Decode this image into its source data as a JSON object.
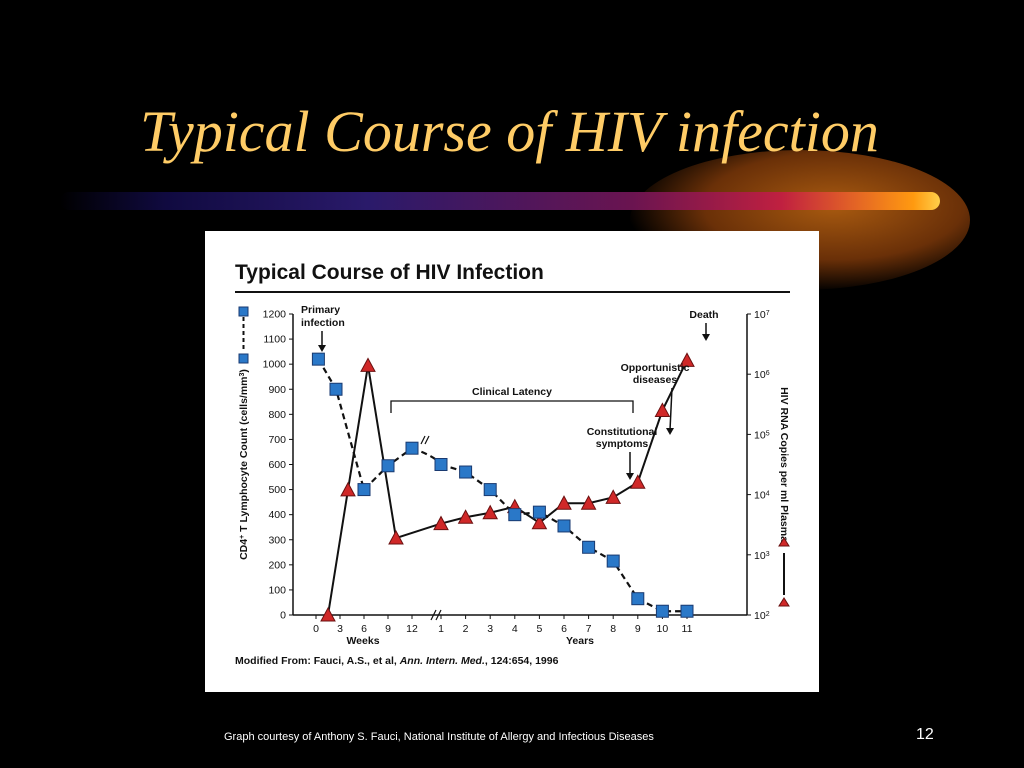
{
  "slide": {
    "title": "Typical Course of HIV infection",
    "footer": "Graph courtesy of Anthony S. Fauci, National Institute of Allergy and Infectious Diseases",
    "page_number": "12"
  },
  "colors": {
    "background": "#000000",
    "title": "#ffcc66",
    "cd4_marker": "#2a78c8",
    "rna_marker": "#d02828"
  },
  "chart_data": {
    "type": "line",
    "title": "Typical Course of HIV Infection",
    "citation_prefix": "Modified From:  Fauci, A.S., et al, ",
    "citation_journal": "Ann. Intern. Med.",
    "citation_suffix": ", 124:654, 1996",
    "y_left": {
      "label_pre": "CD4",
      "label_sup1": "+",
      "label_mid": " T Lymphocyte Count (cells/mm",
      "label_sup2": "3",
      "label_post": ")",
      "range": [
        0,
        1200
      ],
      "ticks": [
        "0",
        "100",
        "200",
        "300",
        "400",
        "500",
        "600",
        "700",
        "800",
        "900",
        "1000",
        "1100",
        "1200"
      ]
    },
    "y_right": {
      "label": "HIV RNA Copies per ml Plasma",
      "scale": "log",
      "range": [
        100,
        10000000
      ],
      "ticks": [
        {
          "base": "10",
          "exp": "2"
        },
        {
          "base": "10",
          "exp": "3"
        },
        {
          "base": "10",
          "exp": "4"
        },
        {
          "base": "10",
          "exp": "5"
        },
        {
          "base": "10",
          "exp": "6"
        },
        {
          "base": "10",
          "exp": "7"
        }
      ]
    },
    "x": {
      "weeks_label": "Weeks",
      "years_label": "Years",
      "week_ticks": [
        "0",
        "3",
        "6",
        "9",
        "12"
      ],
      "year_ticks": [
        "1",
        "2",
        "3",
        "4",
        "5",
        "6",
        "7",
        "8",
        "9",
        "10",
        "11"
      ]
    },
    "series": [
      {
        "key": "cd4",
        "marker": "square",
        "style": "dashed",
        "points": [
          {
            "period": "weeks",
            "t": 0.3,
            "v": 1020
          },
          {
            "period": "weeks",
            "t": 2.5,
            "v": 900
          },
          {
            "period": "weeks",
            "t": 6,
            "v": 500
          },
          {
            "period": "weeks",
            "t": 9,
            "v": 595
          },
          {
            "period": "weeks",
            "t": 12,
            "v": 665
          },
          {
            "period": "years",
            "t": 1,
            "v": 600
          },
          {
            "period": "years",
            "t": 2,
            "v": 570
          },
          {
            "period": "years",
            "t": 3,
            "v": 500
          },
          {
            "period": "years",
            "t": 4,
            "v": 400
          },
          {
            "period": "years",
            "t": 5,
            "v": 410
          },
          {
            "period": "years",
            "t": 6,
            "v": 355
          },
          {
            "period": "years",
            "t": 7,
            "v": 270
          },
          {
            "period": "years",
            "t": 8,
            "v": 215
          },
          {
            "period": "years",
            "t": 9,
            "v": 65
          },
          {
            "period": "years",
            "t": 10,
            "v": 15
          },
          {
            "period": "years",
            "t": 11,
            "v": 15
          }
        ]
      },
      {
        "key": "rna",
        "marker": "triangle",
        "style": "solid",
        "points": [
          {
            "period": "weeks",
            "t": 1.5,
            "v": 100
          },
          {
            "period": "weeks",
            "t": 4,
            "v": 12000
          },
          {
            "period": "weeks",
            "t": 6.5,
            "v": 1400000
          },
          {
            "period": "weeks",
            "t": 10,
            "v": 1900
          },
          {
            "period": "years",
            "t": 1,
            "v": 3300
          },
          {
            "period": "years",
            "t": 2,
            "v": 4200
          },
          {
            "period": "years",
            "t": 3,
            "v": 5000
          },
          {
            "period": "years",
            "t": 4,
            "v": 6300
          },
          {
            "period": "years",
            "t": 5,
            "v": 3400
          },
          {
            "period": "years",
            "t": 6,
            "v": 7200
          },
          {
            "period": "years",
            "t": 7,
            "v": 7200
          },
          {
            "period": "years",
            "t": 8,
            "v": 9000
          },
          {
            "period": "years",
            "t": 9,
            "v": 16000
          },
          {
            "period": "years",
            "t": 10,
            "v": 250000
          },
          {
            "period": "years",
            "t": 11,
            "v": 1700000
          }
        ]
      }
    ],
    "annotations": {
      "primary_infection": [
        "Primary",
        "infection"
      ],
      "clinical_latency": "Clinical Latency",
      "constitutional_symptoms": [
        "Constitutional",
        "symptoms"
      ],
      "opportunistic_diseases": [
        "Opportunistic",
        "diseases"
      ],
      "death": "Death"
    }
  }
}
